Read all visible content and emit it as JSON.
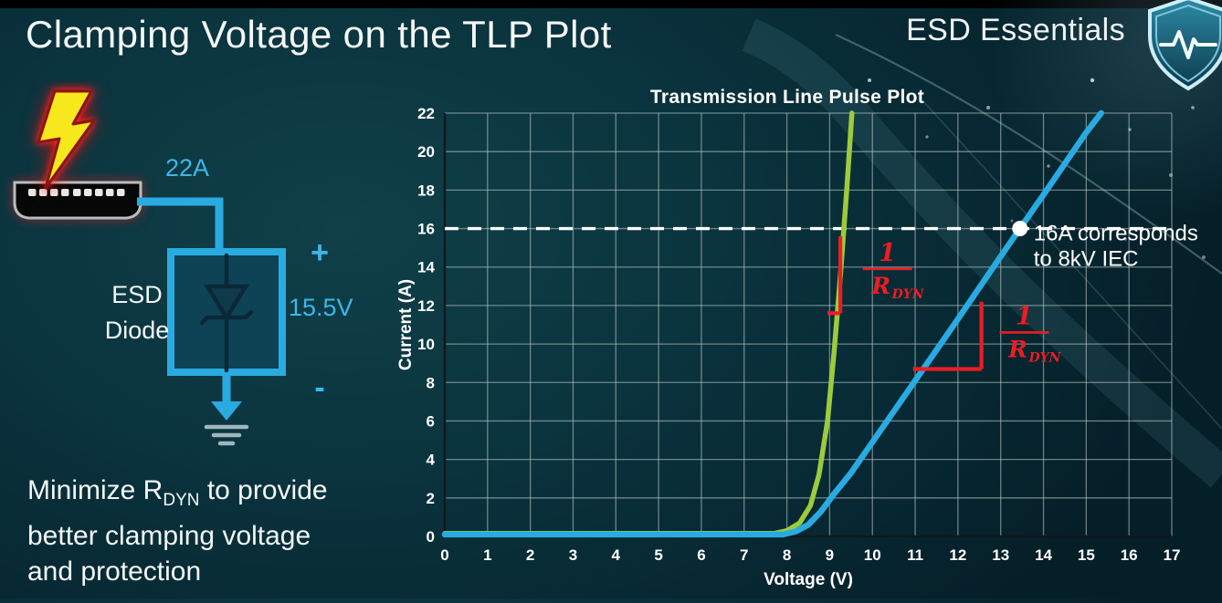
{
  "slide": {
    "title": "Clamping Voltage on the TLP Plot",
    "brand": "ESD Essentials"
  },
  "left_diagram": {
    "surge_label": "22A",
    "device_line1": "ESD",
    "device_line2": "Diode",
    "plus": "+",
    "minus": "-",
    "voltage_label": "15.5V"
  },
  "caption": {
    "prefix": "Minimize R",
    "subscript": "DYN",
    "suffix": " to provide",
    "line2": "better clamping voltage",
    "line3": "and protection"
  },
  "chart_data": {
    "type": "line",
    "title": "Transmission Line Pulse Plot",
    "xlabel": "Voltage (V)",
    "ylabel": "Current (A)",
    "xlim": [
      0,
      17
    ],
    "ylim": [
      0,
      22
    ],
    "x_ticks": [
      0,
      1,
      2,
      3,
      4,
      5,
      6,
      7,
      8,
      9,
      10,
      11,
      12,
      13,
      14,
      15,
      16,
      17
    ],
    "y_ticks": [
      0,
      2,
      4,
      6,
      8,
      10,
      12,
      14,
      16,
      18,
      20,
      22
    ],
    "grid": true,
    "legend": "none",
    "series": [
      {
        "name": "low-rdyn-diode-green",
        "color": "#9ccb3c",
        "width": 5.5,
        "points": [
          [
            0,
            0.15
          ],
          [
            7.7,
            0.15
          ],
          [
            8.0,
            0.3
          ],
          [
            8.3,
            0.7
          ],
          [
            8.55,
            1.6
          ],
          [
            8.75,
            3.2
          ],
          [
            8.95,
            6.0
          ],
          [
            9.1,
            9.5
          ],
          [
            9.25,
            13.5
          ],
          [
            9.4,
            18.0
          ],
          [
            9.52,
            22.0
          ]
        ]
      },
      {
        "name": "higher-rdyn-diode-blue",
        "color": "#29abe2",
        "width": 6.5,
        "points": [
          [
            0,
            0.1
          ],
          [
            7.9,
            0.1
          ],
          [
            8.2,
            0.25
          ],
          [
            8.5,
            0.6
          ],
          [
            8.8,
            1.3
          ],
          [
            9.1,
            2.2
          ],
          [
            9.5,
            3.3
          ],
          [
            10,
            4.9
          ],
          [
            11,
            8.1
          ],
          [
            12,
            11.3
          ],
          [
            13,
            14.55
          ],
          [
            13.45,
            16.0
          ],
          [
            14,
            17.75
          ],
          [
            15,
            21.0
          ],
          [
            15.35,
            22.0
          ]
        ]
      }
    ],
    "reference_line": {
      "y": 16,
      "color": "#ffffff",
      "style": "dashed"
    },
    "marker": {
      "x": 13.45,
      "y": 16,
      "color": "#ffffff",
      "label_lines": [
        "16A corresponds",
        "to 8kV IEC"
      ]
    },
    "slope_annotations": [
      {
        "corner_x": 9.25,
        "corner_y": 11.6,
        "v_top": 15.6,
        "h_left": 8.95,
        "label_x": 10.35,
        "label_y": 13.9,
        "numerator": "1",
        "denominator": "R",
        "denominator_sub": "DYN",
        "color": "#ed1c24"
      },
      {
        "corner_x": 12.55,
        "corner_y": 8.7,
        "v_top": 12.2,
        "h_left": 10.95,
        "label_x": 13.55,
        "label_y": 10.6,
        "numerator": "1",
        "denominator": "R",
        "denominator_sub": "DYN",
        "color": "#ed1c24"
      }
    ]
  }
}
